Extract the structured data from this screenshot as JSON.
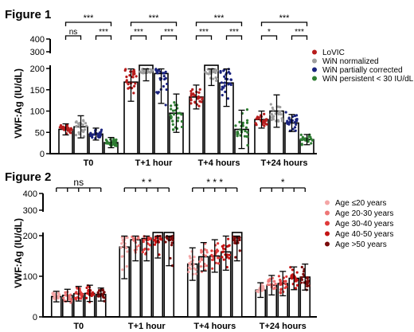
{
  "figure1": {
    "title": "Figure 1",
    "ylabel": "VWF:Ag (IU/dL)",
    "legend": [
      {
        "label": "LoVIC",
        "color": "#b71c1c"
      },
      {
        "label": "WiN normalized",
        "color": "#9e9e9e"
      },
      {
        "label": "WiN partially corrected",
        "color": "#1a237e"
      },
      {
        "label": "WiN persistent < 30 IU/dL",
        "color": "#2e7d32"
      }
    ],
    "significance": [
      {
        "group": 0,
        "top": "***",
        "left": "ns",
        "right": "***"
      },
      {
        "group": 1,
        "top": "***",
        "left": "***",
        "right": "***"
      },
      {
        "group": 2,
        "top": "***",
        "left": "***",
        "right": "***"
      },
      {
        "group": 3,
        "top": "***",
        "left": "*",
        "right": "***"
      }
    ]
  },
  "figure2": {
    "title": "Figure 2",
    "ylabel": "VWF:Ag (IU/dL)",
    "legend": [
      {
        "label": "Age ≤20 years",
        "color": "#f4a6a6"
      },
      {
        "label": "Age 20-30 years",
        "color": "#ee7777"
      },
      {
        "label": "Age 30-40 years",
        "color": "#e03a3a"
      },
      {
        "label": "Age 40-50 years",
        "color": "#c41414"
      },
      {
        "label": "Age >50 years",
        "color": "#7a0a0a"
      }
    ],
    "significance": [
      "ns",
      "* *",
      "* * *",
      "*"
    ]
  },
  "chart_data": [
    {
      "type": "bar",
      "title": "Figure 1",
      "ylabel": "VWF:Ag (IU/dL)",
      "categories": [
        "T0",
        "T+1 hour",
        "T+4 hours",
        "T+24 hours"
      ],
      "y_axis": {
        "segments": [
          {
            "range": [
              0,
              200
            ],
            "ticks": [
              0,
              50,
              100,
              150,
              200
            ]
          },
          {
            "range": [
              300,
              400
            ],
            "ticks": [
              300,
              400
            ]
          }
        ]
      },
      "series": [
        {
          "name": "LoVIC",
          "values": [
            57,
            168,
            133,
            80
          ],
          "errors": [
            13,
            45,
            28,
            20
          ]
        },
        {
          "name": "WiN normalized",
          "values": [
            63,
            233,
            208,
            100
          ],
          "errors": [
            26,
            62,
            48,
            38
          ]
        },
        {
          "name": "WiN partially corrected",
          "values": [
            46,
            188,
            166,
            72
          ],
          "errors": [
            14,
            70,
            55,
            20
          ]
        },
        {
          "name": "WiN persistent < 30 IU/dL",
          "values": [
            26,
            95,
            57,
            33
          ],
          "errors": [
            12,
            45,
            45,
            12
          ]
        }
      ],
      "legend_position": "right"
    },
    {
      "type": "bar",
      "title": "Figure 2",
      "ylabel": "VWF:Ag (IU/dL)",
      "categories": [
        "T0",
        "T+1 hour",
        "T+4 hours",
        "T+24 hours"
      ],
      "y_axis": {
        "segments": [
          {
            "range": [
              0,
              200
            ],
            "ticks": [
              0,
              100,
              200
            ]
          },
          {
            "range": [
              300,
              400
            ],
            "ticks": [
              300,
              400
            ]
          }
        ]
      },
      "series": [
        {
          "name": "Age ≤20 years",
          "values": [
            50,
            172,
            130,
            66
          ],
          "errors": [
            13,
            78,
            40,
            18
          ]
        },
        {
          "name": "Age 20-30 years",
          "values": [
            53,
            190,
            148,
            78
          ],
          "errors": [
            15,
            52,
            35,
            24
          ]
        },
        {
          "name": "Age 30-40 years",
          "values": [
            57,
            193,
            150,
            82
          ],
          "errors": [
            18,
            55,
            40,
            30
          ]
        },
        {
          "name": "Age 40-50 years",
          "values": [
            58,
            205,
            160,
            95
          ],
          "errors": [
            20,
            60,
            45,
            28
          ]
        },
        {
          "name": "Age >50 years",
          "values": [
            55,
            212,
            208,
            98
          ],
          "errors": [
            16,
            86,
            70,
            32
          ]
        }
      ],
      "legend_position": "right"
    }
  ]
}
